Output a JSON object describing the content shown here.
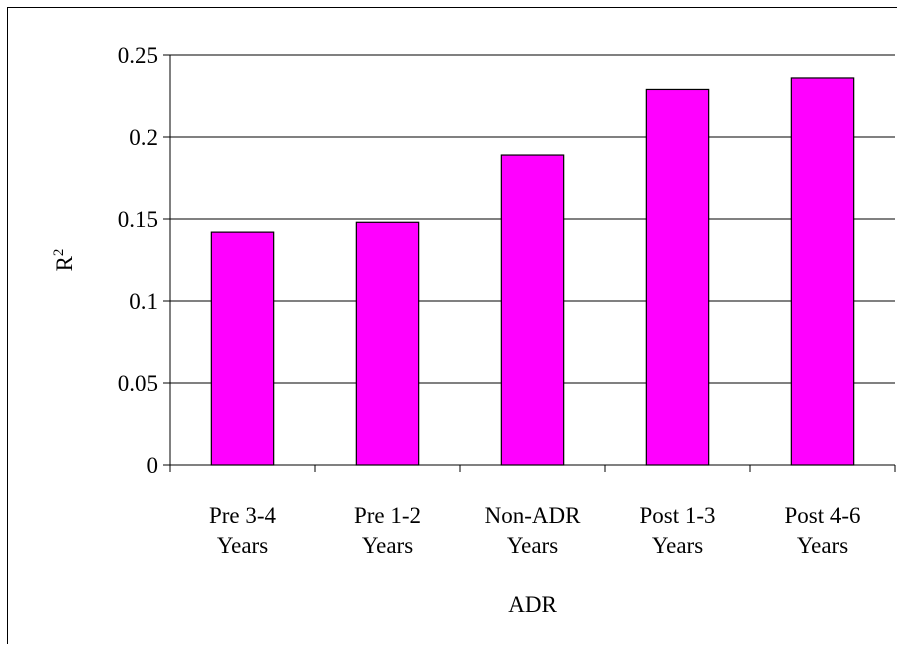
{
  "chart_data": {
    "type": "bar",
    "categories": [
      [
        "Pre 3-4",
        "Years"
      ],
      [
        "Pre 1-2",
        "Years"
      ],
      [
        "Non-ADR",
        "Years"
      ],
      [
        "Post 1-3",
        "Years"
      ],
      [
        "Post 4-6",
        "Years"
      ]
    ],
    "values": [
      0.142,
      0.148,
      0.189,
      0.229,
      0.236
    ],
    "yticks": [
      "0",
      "0.05",
      "0.1",
      "0.15",
      "0.2",
      "0.25"
    ],
    "ylim": [
      0,
      0.25
    ],
    "xlabel": "ADR",
    "ylabel": "R",
    "ylabel_superscript": "2",
    "grid": true,
    "bar_color": "#ff00ff",
    "bar_edge_color": "#000000"
  }
}
